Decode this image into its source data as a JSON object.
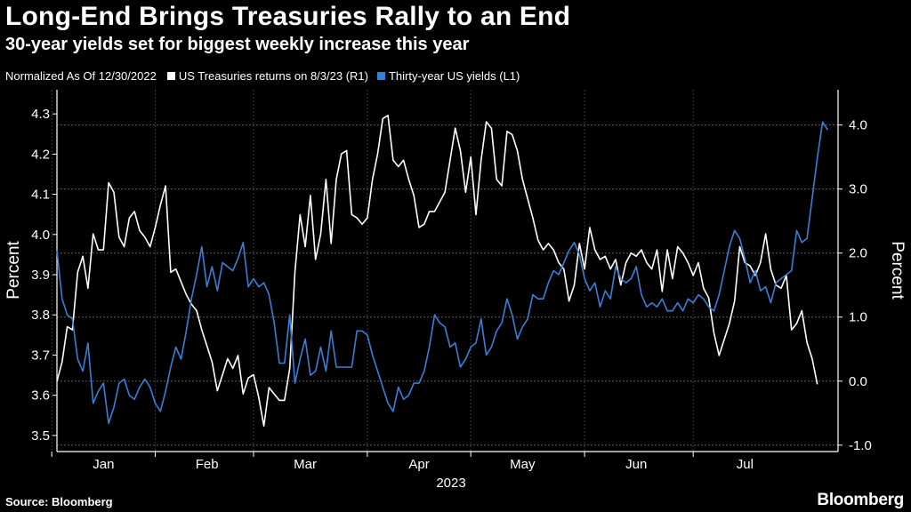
{
  "header": {
    "title": "Long-End Brings Treasuries Rally to an End",
    "subtitle": "30-year yields set for biggest weekly increase this year"
  },
  "legend": {
    "note": "Normalized As Of 12/30/2022",
    "items": [
      {
        "label": "US Treasuries returns on 8/3/23 (R1)",
        "color": "#ffffff"
      },
      {
        "label": "Thirty-year US yields (L1)",
        "color": "#3a7fd5"
      }
    ]
  },
  "footer": {
    "source": "Source: Bloomberg",
    "brand": "Bloomberg"
  },
  "chart_data": {
    "type": "line",
    "x_unit": "trading day index (2023, starting early January)",
    "month_ticks": [
      {
        "label": "Jan",
        "x": 9
      },
      {
        "label": "Feb",
        "x": 29
      },
      {
        "label": "Mar",
        "x": 48
      },
      {
        "label": "Apr",
        "x": 70
      },
      {
        "label": "May",
        "x": 90
      },
      {
        "label": "Jun",
        "x": 112
      },
      {
        "label": "Jul",
        "x": 133
      }
    ],
    "xlabel": "2023",
    "xlim": [
      0,
      151
    ],
    "left_axis": {
      "label": "Percent",
      "ylim": [
        3.46,
        4.36
      ],
      "ticks": [
        3.5,
        3.6,
        3.7,
        3.8,
        3.9,
        4.0,
        4.1,
        4.2,
        4.3
      ]
    },
    "right_axis": {
      "label": "Percent",
      "ylim": [
        -1.1,
        4.55
      ],
      "ticks": [
        -1.0,
        0.0,
        1.0,
        2.0,
        3.0,
        4.0
      ],
      "tick_labels": [
        "-1.0",
        "0.0",
        "1.0",
        "2.0",
        "3.0",
        "4.0"
      ]
    },
    "grid": "horizontal dashed at right-axis ticks",
    "series": [
      {
        "name": "US Treasuries returns on 8/3/23 (R1)",
        "axis": "right",
        "color": "#ffffff",
        "values": [
          0.0,
          0.3,
          0.85,
          0.8,
          1.7,
          1.95,
          1.45,
          2.3,
          2.05,
          2.05,
          3.1,
          2.95,
          2.25,
          2.1,
          2.55,
          2.65,
          2.35,
          2.25,
          2.1,
          2.4,
          2.75,
          3.05,
          1.7,
          1.75,
          1.55,
          1.35,
          1.2,
          1.1,
          0.8,
          0.55,
          0.3,
          -0.15,
          0.1,
          0.35,
          0.2,
          0.4,
          -0.2,
          0.05,
          0.1,
          -0.25,
          -0.7,
          -0.1,
          -0.2,
          -0.3,
          -0.3,
          0.2,
          1.7,
          2.6,
          2.1,
          2.9,
          1.9,
          2.3,
          3.15,
          2.15,
          3.15,
          3.55,
          3.6,
          2.6,
          2.55,
          2.45,
          2.55,
          3.15,
          3.55,
          4.1,
          4.15,
          3.45,
          3.35,
          3.45,
          3.15,
          2.9,
          2.4,
          2.45,
          2.65,
          2.65,
          2.8,
          2.95,
          3.45,
          3.95,
          3.6,
          2.95,
          3.5,
          2.6,
          3.45,
          4.05,
          3.95,
          3.15,
          3.05,
          3.9,
          3.85,
          3.6,
          3.15,
          2.85,
          2.55,
          2.2,
          2.05,
          2.15,
          2.05,
          1.85,
          1.75,
          1.25,
          1.5,
          2.15,
          1.75,
          2.4,
          2.05,
          1.9,
          1.95,
          1.75,
          1.9,
          1.5,
          1.85,
          2.0,
          1.95,
          2.05,
          1.85,
          1.75,
          2.05,
          1.4,
          2.05,
          1.6,
          2.1,
          2.0,
          1.85,
          1.65,
          1.85,
          1.45,
          1.3,
          0.75,
          0.4,
          0.65,
          0.9,
          1.25,
          2.1,
          1.85,
          1.8,
          1.65,
          1.85,
          2.3,
          1.75,
          1.5,
          1.45,
          1.65,
          0.8,
          0.9,
          1.1,
          0.6,
          0.35,
          -0.05
        ]
      },
      {
        "name": "Thirty-year US yields (L1)",
        "axis": "left",
        "color": "#3a7fd5",
        "values": [
          3.96,
          3.84,
          3.8,
          3.79,
          3.69,
          3.66,
          3.73,
          3.58,
          3.61,
          3.63,
          3.53,
          3.57,
          3.63,
          3.64,
          3.6,
          3.59,
          3.62,
          3.64,
          3.62,
          3.58,
          3.56,
          3.61,
          3.67,
          3.72,
          3.69,
          3.76,
          3.84,
          3.9,
          3.97,
          3.87,
          3.92,
          3.86,
          3.93,
          3.92,
          3.91,
          3.94,
          3.98,
          3.87,
          3.89,
          3.87,
          3.88,
          3.85,
          3.78,
          3.68,
          3.68,
          3.8,
          3.63,
          3.69,
          3.74,
          3.65,
          3.66,
          3.72,
          3.66,
          3.76,
          3.67,
          3.67,
          3.67,
          3.67,
          3.76,
          3.76,
          3.75,
          3.7,
          3.66,
          3.62,
          3.58,
          3.56,
          3.62,
          3.59,
          3.6,
          3.63,
          3.63,
          3.66,
          3.72,
          3.8,
          3.78,
          3.77,
          3.72,
          3.73,
          3.67,
          3.69,
          3.72,
          3.73,
          3.79,
          3.7,
          3.72,
          3.76,
          3.78,
          3.84,
          3.8,
          3.74,
          3.77,
          3.79,
          3.85,
          3.84,
          3.84,
          3.88,
          3.91,
          3.9,
          3.93,
          3.96,
          3.98,
          3.95,
          3.89,
          3.86,
          3.88,
          3.82,
          3.86,
          3.84,
          3.92,
          3.89,
          3.88,
          3.89,
          3.92,
          3.85,
          3.82,
          3.83,
          3.82,
          3.84,
          3.81,
          3.81,
          3.83,
          3.81,
          3.84,
          3.83,
          3.85,
          3.84,
          3.82,
          3.81,
          3.85,
          3.91,
          3.97,
          4.01,
          3.99,
          3.94,
          3.88,
          3.91,
          3.86,
          3.87,
          3.83,
          3.88,
          3.89,
          3.9,
          3.91,
          4.01,
          3.98,
          3.99,
          4.09,
          4.19,
          4.28,
          4.26
        ]
      }
    ]
  }
}
